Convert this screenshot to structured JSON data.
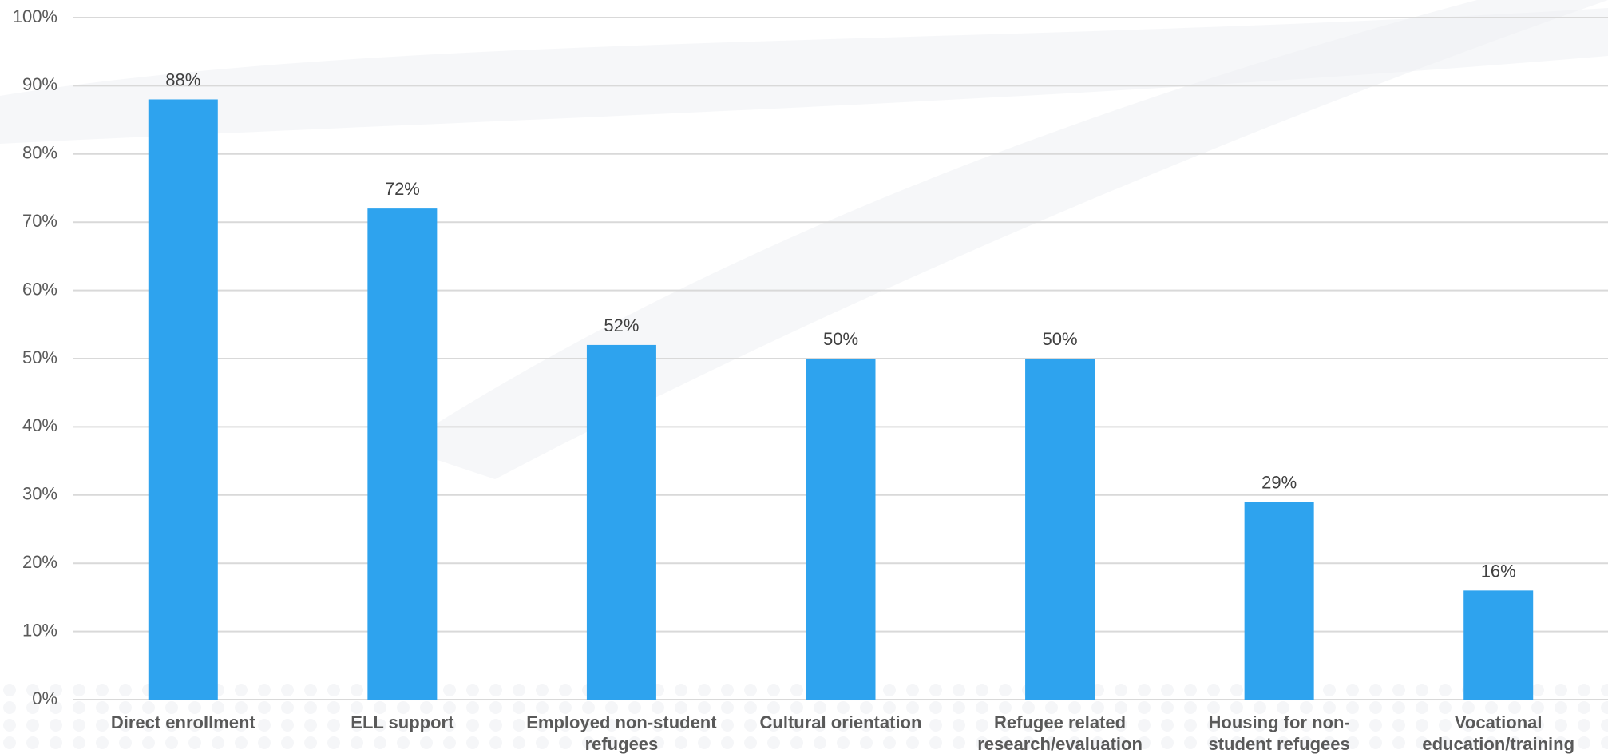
{
  "chart_data": {
    "type": "bar",
    "categories": [
      [
        "Direct enrollment"
      ],
      [
        "ELL support"
      ],
      [
        "Employed non-student",
        "refugees"
      ],
      [
        "Cultural orientation"
      ],
      [
        "Refugee related",
        "research/evaluation"
      ],
      [
        "Housing for non-",
        "student refugees"
      ],
      [
        "Vocational",
        "education/training"
      ]
    ],
    "values": [
      88,
      72,
      52,
      50,
      50,
      29,
      16
    ],
    "value_labels": [
      "88%",
      "72%",
      "52%",
      "50%",
      "50%",
      "29%",
      "16%"
    ],
    "title": "",
    "xlabel": "",
    "ylabel": "",
    "ylim": [
      0,
      100
    ],
    "y_ticks": [
      0,
      10,
      20,
      30,
      40,
      50,
      60,
      70,
      80,
      90,
      100
    ],
    "y_tick_labels": [
      "0%",
      "10%",
      "20%",
      "30%",
      "40%",
      "50%",
      "60%",
      "70%",
      "80%",
      "90%",
      "100%"
    ],
    "grid": true,
    "legend": "none",
    "bar_color": "#2EA3EE"
  }
}
